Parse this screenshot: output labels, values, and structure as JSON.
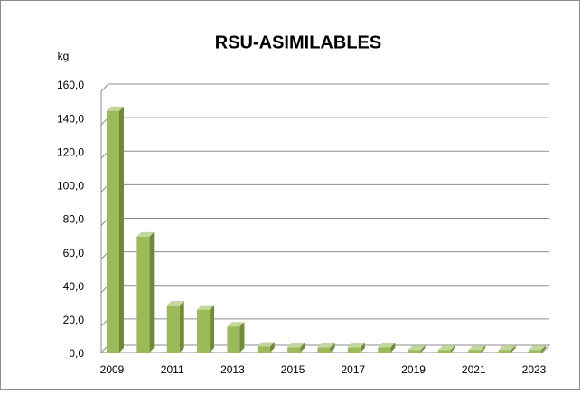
{
  "chart_data": {
    "type": "bar3d",
    "title": "RSU-ASIMILABLES",
    "y_label": "kg",
    "categories": [
      "2009",
      null,
      "2011",
      null,
      "2013",
      null,
      "2015",
      null,
      "2017",
      null,
      "2019",
      null,
      "2021",
      null,
      "2023"
    ],
    "values": [
      144,
      69,
      28,
      25.5,
      15.5,
      3.5,
      3,
      3,
      3,
      3,
      1.5,
      1.5,
      1.5,
      1.5,
      1.5
    ],
    "color": "#9bbb59",
    "ylim": [
      0,
      160
    ],
    "yticks": [
      {
        "value": 0,
        "label": "0,0"
      },
      {
        "value": 20,
        "label": "20,0"
      },
      {
        "value": 40,
        "label": "40,0"
      },
      {
        "value": 60,
        "label": "60,0"
      },
      {
        "value": 80,
        "label": "80,0"
      },
      {
        "value": 100,
        "label": "100,0"
      },
      {
        "value": 120,
        "label": "120,0"
      },
      {
        "value": 140,
        "label": "140,0"
      },
      {
        "value": 160,
        "label": "160,0"
      }
    ],
    "grid": true
  }
}
